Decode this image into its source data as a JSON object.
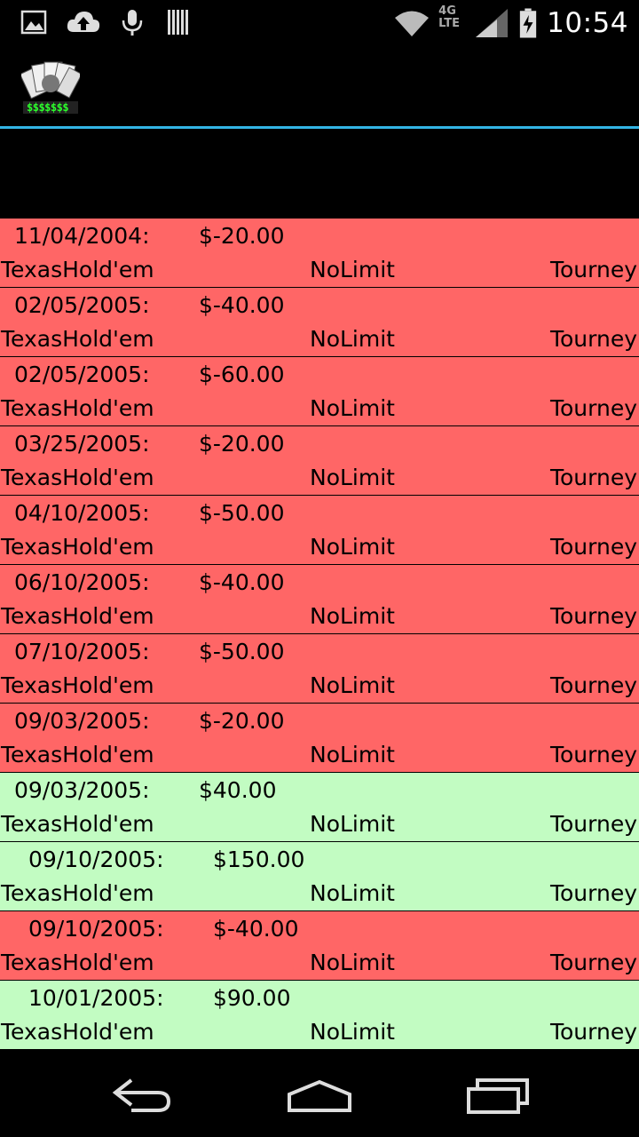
{
  "status_bar": {
    "time": "10:54",
    "network": "4G LTE",
    "icons": [
      "image-icon",
      "cloud-upload-icon",
      "mic-icon",
      "barcode-icon",
      "wifi-icon",
      "signal-icon",
      "battery-charging-icon"
    ]
  },
  "app": {
    "logo_text": "$$$$$$$"
  },
  "colors": {
    "loss": "#ff6666",
    "win": "#c2fcc2",
    "accent": "#33b5e5"
  },
  "sessions": [
    {
      "date": "11/04/2004:",
      "amount": "$-20.00",
      "game": "TexasHold'em",
      "limit": "NoLimit",
      "type": "Tourney",
      "result": "loss",
      "indent": "narrow"
    },
    {
      "date": "02/05/2005:",
      "amount": "$-40.00",
      "game": "TexasHold'em",
      "limit": "NoLimit",
      "type": "Tourney",
      "result": "loss",
      "indent": "narrow"
    },
    {
      "date": "02/05/2005:",
      "amount": "$-60.00",
      "game": "TexasHold'em",
      "limit": "NoLimit",
      "type": "Tourney",
      "result": "loss",
      "indent": "narrow"
    },
    {
      "date": "03/25/2005:",
      "amount": "$-20.00",
      "game": "TexasHold'em",
      "limit": "NoLimit",
      "type": "Tourney",
      "result": "loss",
      "indent": "narrow"
    },
    {
      "date": "04/10/2005:",
      "amount": "$-50.00",
      "game": "TexasHold'em",
      "limit": "NoLimit",
      "type": "Tourney",
      "result": "loss",
      "indent": "narrow"
    },
    {
      "date": "06/10/2005:",
      "amount": "$-40.00",
      "game": "TexasHold'em",
      "limit": "NoLimit",
      "type": "Tourney",
      "result": "loss",
      "indent": "narrow"
    },
    {
      "date": "07/10/2005:",
      "amount": "$-50.00",
      "game": "TexasHold'em",
      "limit": "NoLimit",
      "type": "Tourney",
      "result": "loss",
      "indent": "narrow"
    },
    {
      "date": "09/03/2005:",
      "amount": "$-20.00",
      "game": "TexasHold'em",
      "limit": "NoLimit",
      "type": "Tourney",
      "result": "loss",
      "indent": "narrow"
    },
    {
      "date": "09/03/2005:",
      "amount": "$40.00",
      "game": "TexasHold'em",
      "limit": "NoLimit",
      "type": "Tourney",
      "result": "win",
      "indent": "narrow"
    },
    {
      "date": "09/10/2005:",
      "amount": "$150.00",
      "game": "TexasHold'em",
      "limit": "NoLimit",
      "type": "Tourney",
      "result": "win",
      "indent": "wide"
    },
    {
      "date": "09/10/2005:",
      "amount": "$-40.00",
      "game": "TexasHold'em",
      "limit": "NoLimit",
      "type": "Tourney",
      "result": "loss",
      "indent": "wide"
    },
    {
      "date": "10/01/2005:",
      "amount": "$90.00",
      "game": "TexasHold'em",
      "limit": "NoLimit",
      "type": "Tourney",
      "result": "win",
      "indent": "wide"
    }
  ],
  "nav_bar": {
    "buttons": [
      "back-icon",
      "home-icon",
      "recent-apps-icon"
    ]
  }
}
